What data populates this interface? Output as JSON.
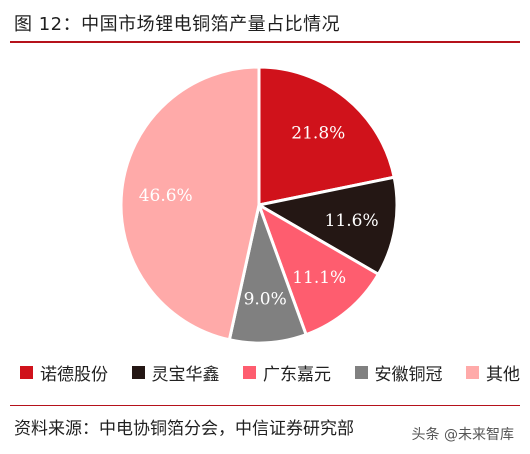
{
  "title": "图 12：中国市场锂电铜箔产量占比情况",
  "source": "资料来源：中电协铜箔分会，中信证券研究部",
  "watermark": "头条 @未来智库",
  "chart_data": {
    "type": "pie",
    "start_angle_deg": 0,
    "direction": "clockwise",
    "slices": [
      {
        "label": "诺德股份",
        "value": 21.8,
        "display": "21.8%",
        "color": "#d0121b"
      },
      {
        "label": "灵宝华鑫",
        "value": 11.6,
        "display": "11.6%",
        "color": "#241714"
      },
      {
        "label": "广东嘉元",
        "value": 11.1,
        "display": "11.1%",
        "color": "#fe5d6f"
      },
      {
        "label": "安徽铜冠",
        "value": 9.0,
        "display": "9.0%",
        "color": "#808080"
      },
      {
        "label": "其他",
        "value": 46.6,
        "display": "46.6%",
        "color": "#ffaaa9"
      }
    ],
    "legend_position": "bottom"
  }
}
